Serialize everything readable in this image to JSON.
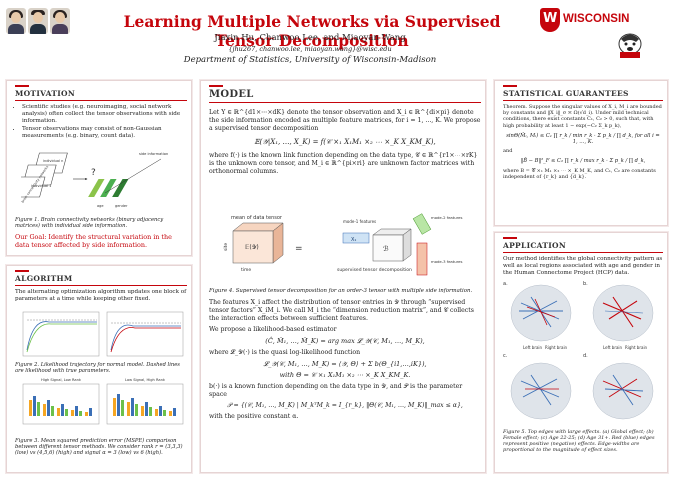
{
  "title": "Learning Multiple Networks via Supervised Tensor Decomposition",
  "authors": "Jiaxin Hu, Chanwoo Lee, and Miaoyan Wang",
  "emails": "{jhu267, chanwoo.lee, miaoyan.wang}@wisc.edu",
  "department": "Department of Statistics, University of Wisconsin-Madison",
  "logo": {
    "text": "WISCONSIN",
    "crest_letter": "W"
  },
  "motivation": {
    "heading": "MOTIVATION",
    "bullets": [
      "Scientific studies (e.g. neuroimaging, social network analysis) often collect the tensor observations with side information.",
      "Tensor observations may consist of non-Gaussian measurements (e.g. binary, count data)."
    ],
    "fig_labels": {
      "individual": "individual n",
      "individual1": "individual 1",
      "side": "side information",
      "brain": "brain connectivity networks",
      "age": "age",
      "gender": "gender",
      "q": "?"
    },
    "caption": "Figure 1. Brain connectivity networks (binary adjacency matrices) with individual side information.",
    "goal": "Our Goal: Identify the structural variation in the data tensor affected by side information."
  },
  "algorithm": {
    "heading": "ALGORITHM",
    "text": "The alternating optimization algorithm updates one block of parameters at a time while keeping other fixed.",
    "caption2": "Figure 2. Likelihood trajectory for normal model. Dashed lines are likelihood with true parameters.",
    "caption3": "Figure 3. Mean squared prediction error (MSPE) comparison between different tensor methods. We consider rank r = (3,3,3) (low) vs (4,5,6) (high) and signal α = 3 (low) vs 6 (high).",
    "plot_titles": [
      "High Signal, Low Rank",
      "Low Signal, High Rank"
    ]
  },
  "model": {
    "heading": "MODEL",
    "p1": "Let Y ∈ ℝ^{d1×⋯×dK} denote the tensor observation and X_i ∈ ℝ^{di×pi} denote the side information encoded as multiple feature matrices, for i = 1, ..., K. We propose a supervised tensor decomposition",
    "eq1": "𝔼(𝒴|X₁, …, X_K) = f(𝒞 ×₁ X₁M₁ ×₂ ⋯ ×_K X_KM_K),",
    "p2": "where f(·) is the known link function depending on the data type, 𝒞 ∈ ℝ^{r1×⋯×rK} is the unknown core tensor, and M_i ∈ ℝ^{pi×ri} are unknown factor matrices with orthonormal columns.",
    "fig_labels": {
      "mean": "mean of data tensor",
      "E": "𝔼(𝒴)",
      "time": "time",
      "site": "site",
      "x1": "X₁",
      "mode1": "mode-1 features",
      "B": "ℬ",
      "sup": "supervised tensor decomposition",
      "mode2": "mode-2 features",
      "mode3": "mode-3 features",
      "eq": "="
    },
    "caption4": "Figure 4. Supervised tensor decomposition for an order-3 tensor with multiple side information.",
    "p3": "The features X_i affect the distribution of tensor entries in 𝒴 through “supervised tensor factors” X_iM_i. We call M_i the “dimension reduction matrix”, and 𝒞 collects the interaction effects between sufficient features.",
    "p4": "We propose a likelihood-based estimator",
    "eq2": "(Ĉ, M̂₁, …, M̂_K) = arg max 𝓛_𝒴(𝒞, M₁, …, M_K),",
    "p5": "where 𝓛_𝒴(·) is the quasi log-likelihood function",
    "eq3": "𝓛_𝒴(𝒞, M₁, …, M_K) = ⟨𝒴, Θ⟩ + Σ b(Θ_{i1,…,iK}),",
    "eq4": "with Θ = 𝒞 ×₁ X₁M₁ ×₂ ⋯ ×_K X_KM_K.",
    "p6": "b(·) is a known function depending on the data type in 𝒴, and 𝒫 is the parameter space",
    "eq5": "𝒫 = {(𝒞, M₁, …, M_K) | M_kᵀM_k = I_{r_k}, ‖Θ(𝒞, M₁, …, M_K)‖_max ≤ α},",
    "p7": "with the positive constant α."
  },
  "guarantees": {
    "heading": "STATISTICAL GUARANTEES",
    "theorem": "Theorem. Suppose the singular values of X_i, M_i are bounded by constants and ‖X_i‖_σ ≍ Ω(√d_i). Under mild technical conditions, there exist constants C₁, C₂ > 0, such that, with high probability at least 1 − exp(−C₂ Σ_k p_k),",
    "eqA": "sinΘ(M̂ᵢ, Mᵢ) ≤ C₁ ∏ r_k / min r_k · Σ p_k / ∏ d_k,   for all i = 1, …, K.",
    "and": "and",
    "eqB": "‖B̂ − B‖²_F ≤ C₂ ∏ r_k / max r_k · Σ p_k / ∏ d_k,",
    "where": "where B = 𝒞 ×₁ M₁ ×₂ ⋯ ×_K M_K, and C₁, C₂ are constants independent of {r_k} and {d_k}."
  },
  "application": {
    "heading": "APPLICATION",
    "text": "Our method identifies the global connectivity pattern as well as local regions associated with age and gender in the Human Connectome Project (HCP) data.",
    "panel_letters": [
      "a.",
      "b.",
      "c.",
      "d."
    ],
    "brain_labels": [
      "Left brain",
      "Right brain",
      "Left brain",
      "Right brain"
    ],
    "caption": "Figure 5. Top edges with large effects. (a) Global effect; (b) Female effect; (c) Age 22-25; (d) Age 31+. Red (blue) edges represent positive (negative) effects. Edge-widths are proportional to the magnitude of effect sizes."
  },
  "colors": {
    "accent": "#c5050c",
    "blue": "#3b6fb6",
    "green": "#6cc04a"
  }
}
